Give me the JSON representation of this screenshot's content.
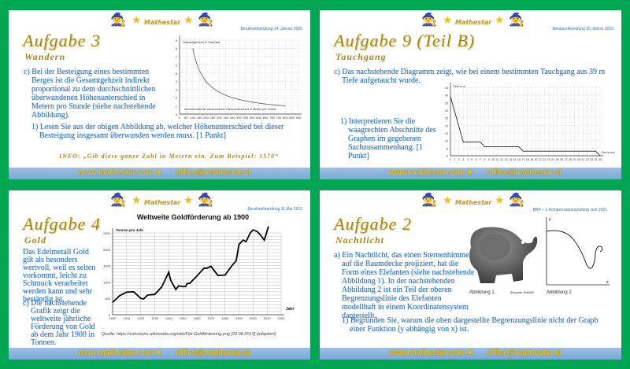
{
  "brand": {
    "name": "Mathestar",
    "website": "www.mathestar.com",
    "email": "office@mathestar.at"
  },
  "colors": {
    "background": "#00a651",
    "text": "#2a6fc9",
    "title": "#a8861b",
    "footer": "#8ab4dc"
  },
  "slides": [
    {
      "date": "Berufsreifeprüfung 14. Jänner 2020",
      "title": "Aufgabe 3",
      "subtitle": "Wandern",
      "text": "c) Bei der Besteigung eines bestimmten Berges ist die Gesamtgehzeit indirekt proportional zu dem durchschnittlichen überwundenen Höhenunterschied in Metern pro Stunde (siehe nachstehende Abbildung).",
      "question": "1) Lesen Sie aus der obigen Abbildung ab, welcher Höhenunterschied bei dieser Besteigung insgesamt überwunden werden muss. [1 Punkt]",
      "info": "INFO: „Gib diese ganze Zahl in Metern ein. Zum Beispiel: 1570“"
    },
    {
      "date": "Berufsreifeprüfung 15.Jänner 2019",
      "title": "Aufgabe 9 (Teil B)",
      "subtitle": "Tauchgang",
      "text": "c) Das nachstehende Diagramm zeigt, wie bei einem bestimmten Tauchgang aus 39 m Tiefe aufgetaucht wurde.",
      "question": "1) Interpretieren Sie die waagrechten Abschnitte des Graphen im gegebenen Sachzusammenhang. [1 Punkt]"
    },
    {
      "date": "Berufsreifeprüfung 11.Mai 2015",
      "title": "Aufgabe 4",
      "subtitle": "Gold",
      "text": "Das Edelmetall Gold gilt als besonders wertvoll, weil es selten vorkommt, leicht zu Schmuck verarbeitet werden kann und sehr beständig ist.",
      "question": "c) Die nachstehende Grafik zeigt die weltweite jährliche Förderung von Gold ab dem Jahr 1900 in Tonnen.",
      "source": "Quelle: https://commons.wikimedia.org/wiki/File:Goldförderung.png [29.08.2013] (adaptiert)"
    },
    {
      "date": "BRP – 1 Kompensationsprüfung Juni 2021",
      "title": "Aufgabe 2",
      "subtitle": "Nachtlicht",
      "text": "a) Ein Nachtlicht, das einen Sternenhimmel auf die Raumdecke projiziert, hat die Form eines Elefanten (siehe nachstehende Abbildung 1). In der nachstehenden Abbildung 2 ist ein Teil der oberen Begrenzungslinie des Elefanten modellhaft in einem Koordinatensystem dargestellt.",
      "question": "1) Begründen Sie, warum die oben dargestellte Begrenzungslinie nicht der Graph einer Funktion (y abhängig von x) ist.",
      "fig1": "Abbildung 1",
      "fig2": "Abbildung 2",
      "credit": "Bildquelle: BMBWF",
      "xlabel": "x",
      "ylabel": "y"
    }
  ],
  "chart_data": [
    {
      "type": "line",
      "ylabel": "Gesamtgehzeit in Stunden",
      "xlabel": "durchschnittlicher überwundener Höhenunterschied in Metern pro Stunde",
      "xlim": [
        0,
        900
      ],
      "ylim": [
        0,
        9
      ],
      "xticks": [
        0,
        50,
        100,
        150,
        200,
        250,
        300,
        350,
        400,
        450,
        500,
        550,
        600,
        650,
        700,
        750,
        800,
        850,
        900
      ],
      "yticks": [
        0,
        1,
        2,
        3,
        4,
        5,
        6,
        7,
        8,
        9
      ],
      "grid": true,
      "function": "y = 800/x",
      "x": [
        100,
        800
      ]
    },
    {
      "type": "line",
      "ylabel": "Tiefe in m",
      "xlabel": "Zeit in min",
      "xlim": [
        0,
        35
      ],
      "ylim": [
        0,
        45
      ],
      "yticks": [
        0,
        5,
        10,
        15,
        20,
        25,
        30,
        35,
        40,
        45
      ],
      "grid": true,
      "x": [
        0,
        3,
        7,
        8,
        16,
        17,
        34,
        35
      ],
      "y": [
        39,
        9,
        9,
        6,
        6,
        3,
        3,
        0
      ]
    },
    {
      "type": "line",
      "title": "Weltweite Goldförderung ab 1900",
      "ylabel": "Tonnen pro Jahr",
      "xlabel": "Jahr",
      "xlim": [
        1900,
        2020
      ],
      "ylim": [
        0,
        2500
      ],
      "xticks": [
        1900,
        1910,
        1920,
        1930,
        1940,
        1950,
        1960,
        1970,
        1980,
        1990,
        2000,
        2010,
        2020
      ],
      "yticks": [
        0,
        500,
        1000,
        1500,
        2000,
        2500
      ],
      "grid": true,
      "x": [
        1900,
        1905,
        1910,
        1915,
        1920,
        1922,
        1925,
        1930,
        1935,
        1940,
        1941,
        1942,
        1945,
        1947,
        1950,
        1952,
        1953,
        1955,
        1960,
        1965,
        1967,
        1970,
        1975,
        1980,
        1985,
        1988,
        1990,
        1993,
        1995,
        1998,
        2000,
        2003,
        2005,
        2008,
        2011
      ],
      "y": [
        380,
        580,
        690,
        700,
        500,
        480,
        600,
        620,
        850,
        1300,
        1100,
        1000,
        770,
        880,
        860,
        860,
        950,
        960,
        1180,
        1420,
        1420,
        1480,
        1200,
        1210,
        1500,
        1650,
        2150,
        2280,
        2230,
        2500,
        2590,
        2540,
        2450,
        2280,
        2700
      ]
    }
  ]
}
